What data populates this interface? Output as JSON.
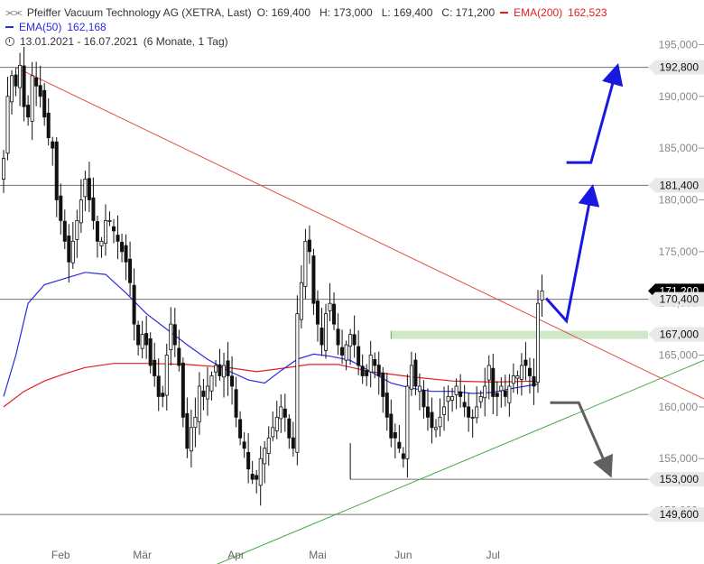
{
  "header": {
    "instrument": "Pfeiffer Vacuum Technology AG (XETRA, Last)",
    "ohlc": "O: 169,400   H: 173,000   L: 169,400   C: 171,200",
    "ema200_label": "EMA(200)",
    "ema200_value": "162,523",
    "ema50_label": "EMA(50)",
    "ema50_value": "162,168",
    "period": "13.01.2021 - 16.07.2021",
    "interval": "(6 Monate, 1 Tag)"
  },
  "colors": {
    "ema200": "#e02020",
    "ema50": "#2a2ae0",
    "trendline_down": "#e05040",
    "trendline_up": "#44aa44",
    "arrow_blue": "#1818e0",
    "arrow_gray": "#606060",
    "zone": "#cfe8c8",
    "candle": "#111111",
    "level_line": "#707070",
    "price_badge": "#000000"
  },
  "icons": {
    "bars": "ohlc-bars-icon",
    "clock": "clock-icon"
  },
  "chart_data": {
    "type": "candlestick",
    "title": "Pfeiffer Vacuum Technology AG (XETRA, Last)",
    "xlabel": "",
    "ylabel": "",
    "ylim": [
      147,
      198
    ],
    "grid": false,
    "y_ticks": [
      "150,000",
      "155,000",
      "160,000",
      "165,000",
      "170,000",
      "175,000",
      "180,000",
      "185,000",
      "190,000",
      "195,000"
    ],
    "y_tick_values": [
      150,
      155,
      160,
      165,
      170,
      175,
      180,
      185,
      190,
      195
    ],
    "x_ticks": [
      {
        "label": "Feb",
        "index": 14
      },
      {
        "label": "Mär",
        "index": 34
      },
      {
        "label": "Apr",
        "index": 57
      },
      {
        "label": "Mai",
        "index": 77
      },
      {
        "label": "Jun",
        "index": 98
      },
      {
        "label": "Jul",
        "index": 120
      }
    ],
    "close_series": [
      184,
      190,
      192,
      191,
      193,
      189,
      188,
      192,
      191,
      190,
      188,
      186,
      185,
      180,
      178,
      176,
      174,
      176,
      178,
      180,
      182,
      180,
      178,
      176,
      176,
      178,
      178,
      177,
      176,
      175,
      174,
      172,
      168,
      166,
      167,
      166,
      164,
      163,
      161,
      161,
      165,
      168,
      166,
      164,
      159,
      156,
      158,
      159,
      162,
      161,
      162,
      163,
      164,
      163,
      164,
      163,
      162,
      159,
      157,
      156,
      154,
      153,
      153,
      155,
      156,
      157,
      158,
      159,
      160,
      159,
      157,
      156,
      169,
      172,
      176,
      175,
      170,
      168,
      166,
      169,
      170,
      168,
      166,
      165,
      166,
      167,
      166,
      164,
      163,
      163,
      165,
      164,
      163,
      161,
      159,
      157,
      157,
      156,
      155,
      162,
      164,
      162,
      162,
      160,
      159,
      158,
      158,
      159,
      160,
      161,
      161,
      162,
      161,
      160,
      159,
      159,
      160,
      161,
      162,
      164,
      161,
      161,
      162,
      161,
      162,
      163,
      163,
      164,
      164,
      163,
      162,
      170,
      171.2
    ],
    "ema50_series": [
      {
        "i": 0,
        "v": 161
      },
      {
        "i": 3,
        "v": 165
      },
      {
        "i": 6,
        "v": 170
      },
      {
        "i": 10,
        "v": 171.8
      },
      {
        "i": 15,
        "v": 172.4
      },
      {
        "i": 20,
        "v": 173
      },
      {
        "i": 25,
        "v": 172.8
      },
      {
        "i": 30,
        "v": 171
      },
      {
        "i": 35,
        "v": 169
      },
      {
        "i": 40,
        "v": 167.5
      },
      {
        "i": 45,
        "v": 166
      },
      {
        "i": 50,
        "v": 164.6
      },
      {
        "i": 55,
        "v": 163.5
      },
      {
        "i": 60,
        "v": 162.6
      },
      {
        "i": 64,
        "v": 162.3
      },
      {
        "i": 68,
        "v": 163.5
      },
      {
        "i": 72,
        "v": 164.6
      },
      {
        "i": 76,
        "v": 165.1
      },
      {
        "i": 80,
        "v": 164.9
      },
      {
        "i": 85,
        "v": 164.5
      },
      {
        "i": 90,
        "v": 163.4
      },
      {
        "i": 95,
        "v": 162.3
      },
      {
        "i": 100,
        "v": 161.8
      },
      {
        "i": 105,
        "v": 161.5
      },
      {
        "i": 110,
        "v": 161.5
      },
      {
        "i": 115,
        "v": 161.3
      },
      {
        "i": 120,
        "v": 161.4
      },
      {
        "i": 125,
        "v": 161.8
      },
      {
        "i": 131,
        "v": 162.2
      }
    ],
    "ema200_series": [
      {
        "i": 0,
        "v": 160
      },
      {
        "i": 5,
        "v": 161.5
      },
      {
        "i": 10,
        "v": 162.5
      },
      {
        "i": 15,
        "v": 163.2
      },
      {
        "i": 20,
        "v": 163.8
      },
      {
        "i": 27,
        "v": 164.2
      },
      {
        "i": 35,
        "v": 164.2
      },
      {
        "i": 45,
        "v": 164.1
      },
      {
        "i": 55,
        "v": 163.8
      },
      {
        "i": 62,
        "v": 163.4
      },
      {
        "i": 68,
        "v": 163.7
      },
      {
        "i": 75,
        "v": 164.1
      },
      {
        "i": 82,
        "v": 164.1
      },
      {
        "i": 90,
        "v": 163.4
      },
      {
        "i": 100,
        "v": 162.9
      },
      {
        "i": 110,
        "v": 162.5
      },
      {
        "i": 120,
        "v": 162.4
      },
      {
        "i": 131,
        "v": 162.5
      }
    ],
    "levels": [
      {
        "value": 192.8,
        "label": "192,800"
      },
      {
        "value": 181.4,
        "label": "181,400"
      },
      {
        "value": 170.4,
        "label": "170,400"
      },
      {
        "value": 153.0,
        "label": "153,000"
      },
      {
        "value": 149.6,
        "label": "149,600"
      }
    ],
    "zone": {
      "value": 167.0,
      "label": "167,000",
      "start_index": 95
    },
    "current_badge": {
      "value": 171.2,
      "label": "171,200"
    },
    "trendline_down": {
      "from": {
        "i": 3,
        "v": 192.8
      },
      "to": {
        "i": 160,
        "v": 163.0
      }
    },
    "trendline_up": {
      "from": {
        "i": 45,
        "v": 143
      },
      "to": {
        "i": 168,
        "v": 164.5
      }
    },
    "support_line_start_index": 85,
    "projections": {
      "up_small": {
        "from": {
          "i": 133,
          "v": 170.5
        },
        "via": {
          "i": 138,
          "v": 168.3
        },
        "to": {
          "i": 144,
          "v": 180.5
        }
      },
      "up_large": {
        "from": {
          "i": 138,
          "v": 183.6
        },
        "via": {
          "i": 144,
          "v": 183.6
        },
        "to": {
          "i": 150,
          "v": 192.2
        }
      },
      "down": {
        "from": {
          "i": 134,
          "v": 160.4
        },
        "via": {
          "i": 141,
          "v": 160.4
        },
        "to": {
          "i": 148,
          "v": 154.1
        }
      }
    }
  }
}
